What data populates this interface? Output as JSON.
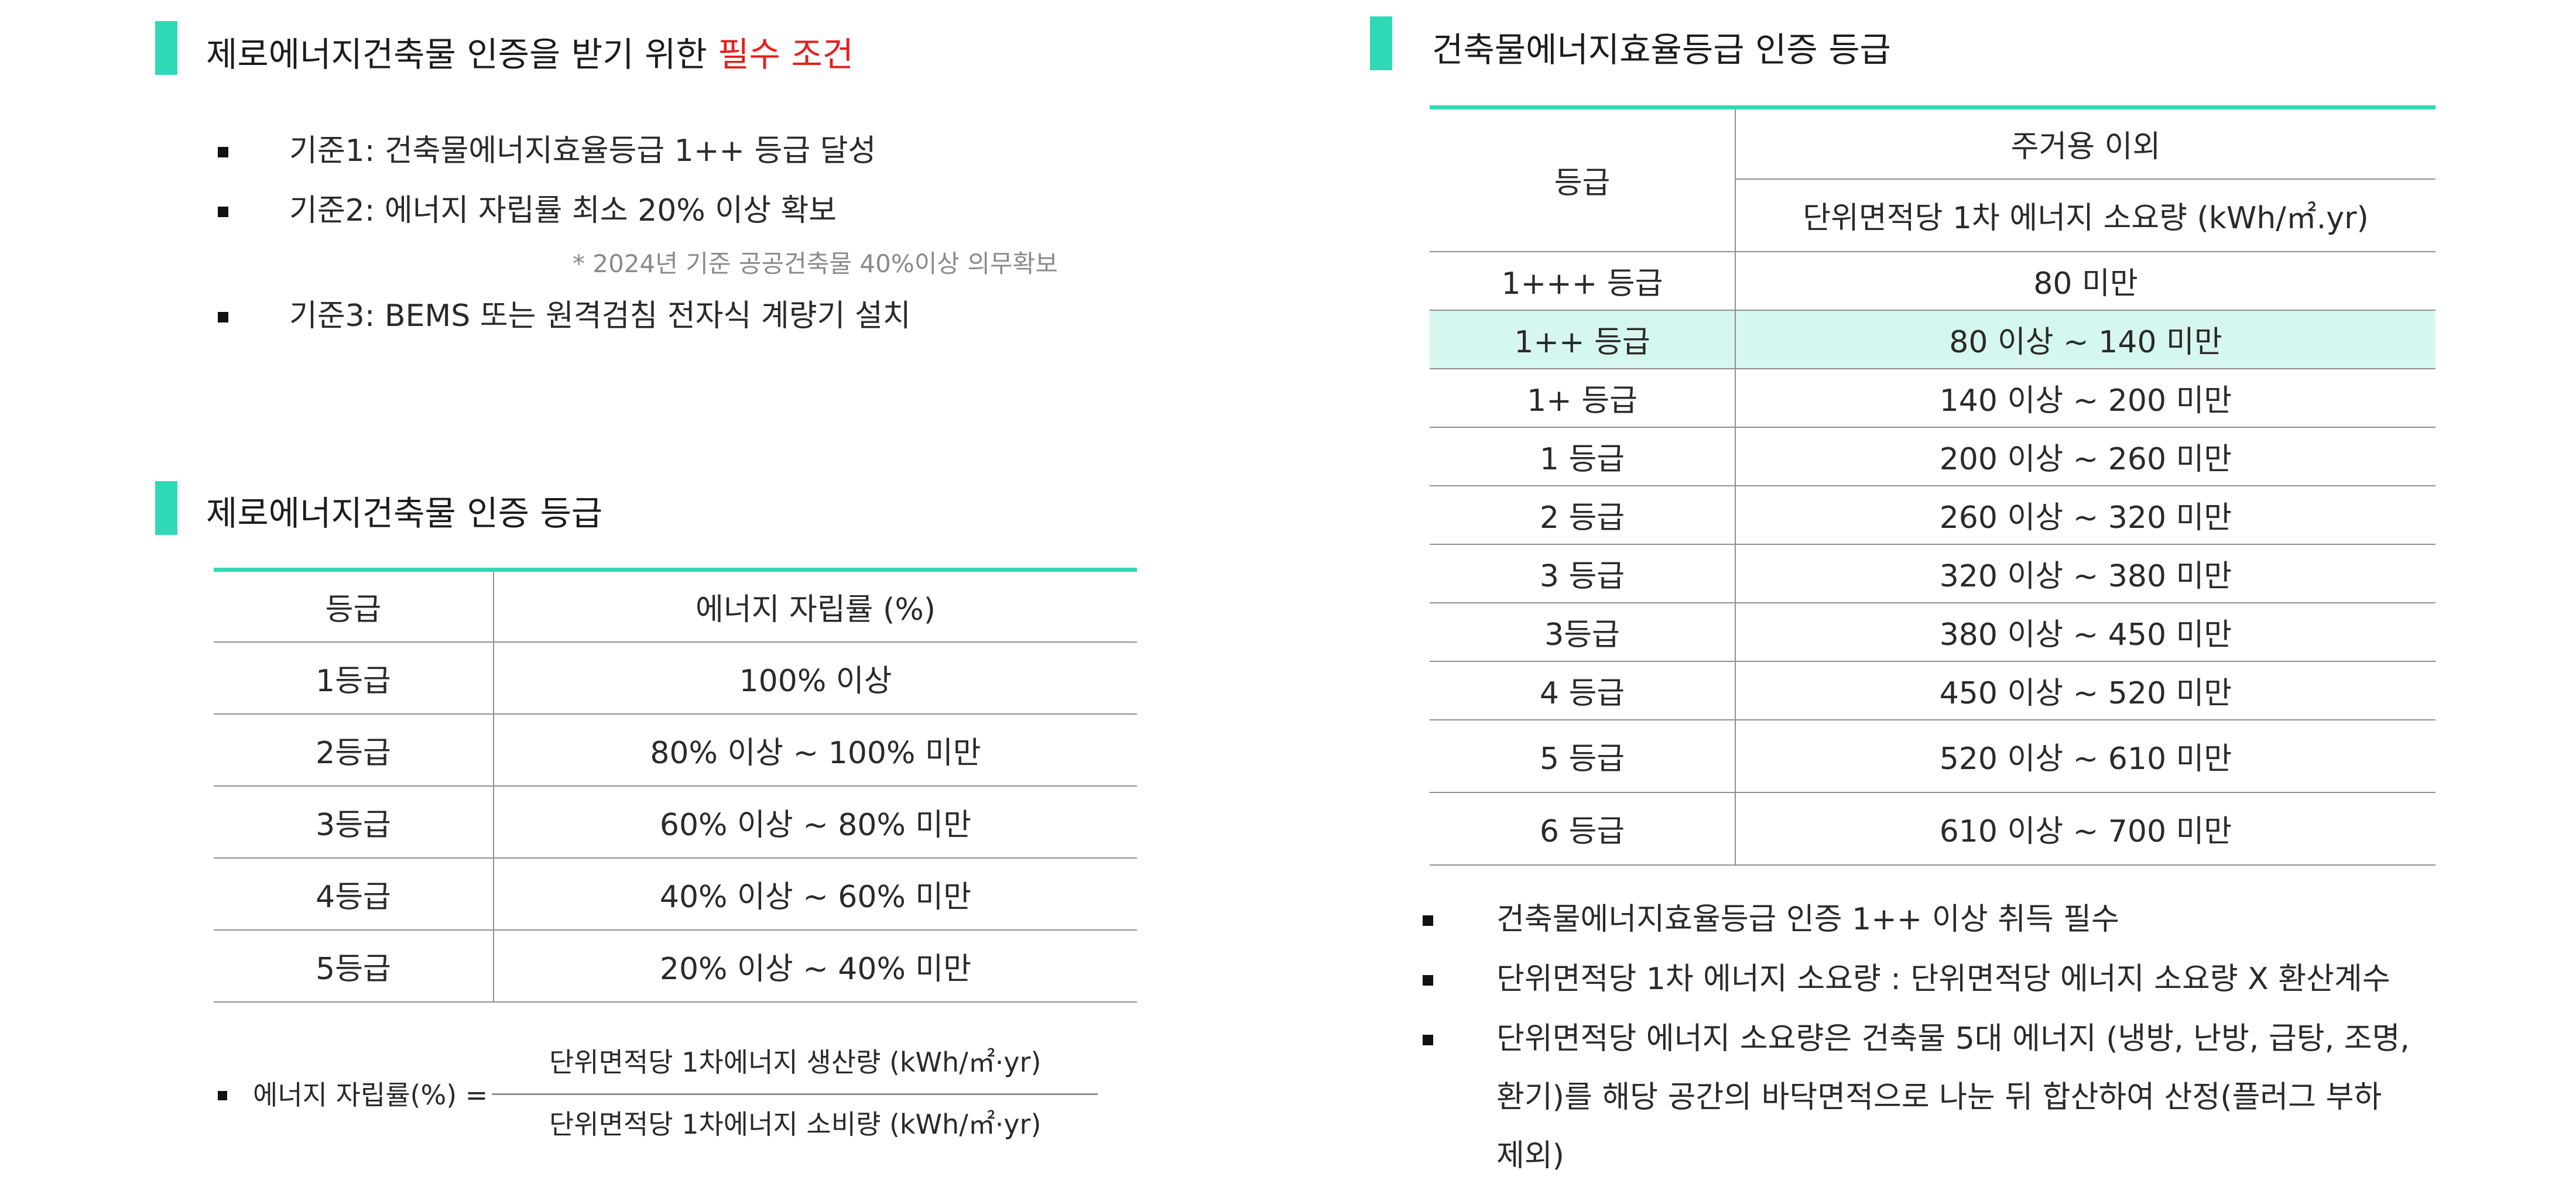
{
  "left": {
    "section1": {
      "title_main": "제로에너지건축물 인증을 받기 위한 ",
      "title_highlight": "필수 조건",
      "bullets": [
        "기준1: 건축물에너지효율등급 1++ 등급 달성",
        "기준2: 에너지 자립률 최소 20% 이상 확보",
        "기준3: BEMS 또는 원격검침 전자식 계량기 설치"
      ],
      "note": "* 2024년 기준 공공건축물 40%이상 의무확보"
    },
    "section2": {
      "title": "제로에너지건축물 인증 등급",
      "table": {
        "headers": [
          "등급",
          "에너지 자립률 (%)"
        ],
        "rows": [
          [
            "1등급",
            "100% 이상"
          ],
          [
            "2등급",
            "80% 이상 ~ 100% 미만"
          ],
          [
            "3등급",
            "60% 이상 ~ 80% 미만"
          ],
          [
            "4등급",
            "40% 이상 ~ 60% 미만"
          ],
          [
            "5등급",
            "20% 이상 ~ 40% 미만"
          ]
        ]
      },
      "formula": {
        "label": "에너지 자립률(%) =",
        "numerator": "단위면적당 1차에너지 생산량 (kWh/㎡·yr)",
        "denominator": "단위면적당 1차에너지 소비량 (kWh/㎡·yr)"
      }
    }
  },
  "right": {
    "title": "건축물에너지효율등급 인증 등급",
    "table": {
      "header_grade": "등급",
      "header_group": "주거용 이외",
      "header_sub": "단위면적당 1차 에너지 소요량 (kWh/㎡.yr)",
      "rows": [
        [
          "1+++ 등급",
          "80 미만"
        ],
        [
          "1++ 등급",
          "80 이상 ~ 140 미만"
        ],
        [
          "1+ 등급",
          "140 이상 ~ 200 미만"
        ],
        [
          "1 등급",
          "200 이상 ~ 260 미만"
        ],
        [
          "2 등급",
          "260 이상 ~ 320 미만"
        ],
        [
          "3 등급",
          "320 이상 ~ 380 미만"
        ],
        [
          "3등급",
          "380 이상 ~ 450 미만"
        ],
        [
          "4 등급",
          "450 이상 ~ 520 미만"
        ],
        [
          "5 등급",
          "520 이상 ~ 610 미만"
        ],
        [
          "6 등급",
          "610 이상 ~ 700 미만"
        ]
      ],
      "highlight_row": "1++ 등급"
    },
    "bullets": [
      "건축물에너지효율등급 인증 1++ 이상 취득 필수",
      "단위면적당 1차 에너지 소요량 : 단위면적당 에너지 소요량 X  환산계수",
      "단위면적당 에너지 소요량은 건축물 5대 에너지 (냉방, 난방, 급탕, 조명,",
      "환기)를 해당 공간의 바닥면적으로 나눈 뒤 합산하여 산정(플러그 부하",
      "제외)"
    ]
  },
  "colors": {
    "accent": "#2fd9b5",
    "highlight_text": "#e61e1e",
    "highlight_row_bg": "#d6f7ef"
  }
}
